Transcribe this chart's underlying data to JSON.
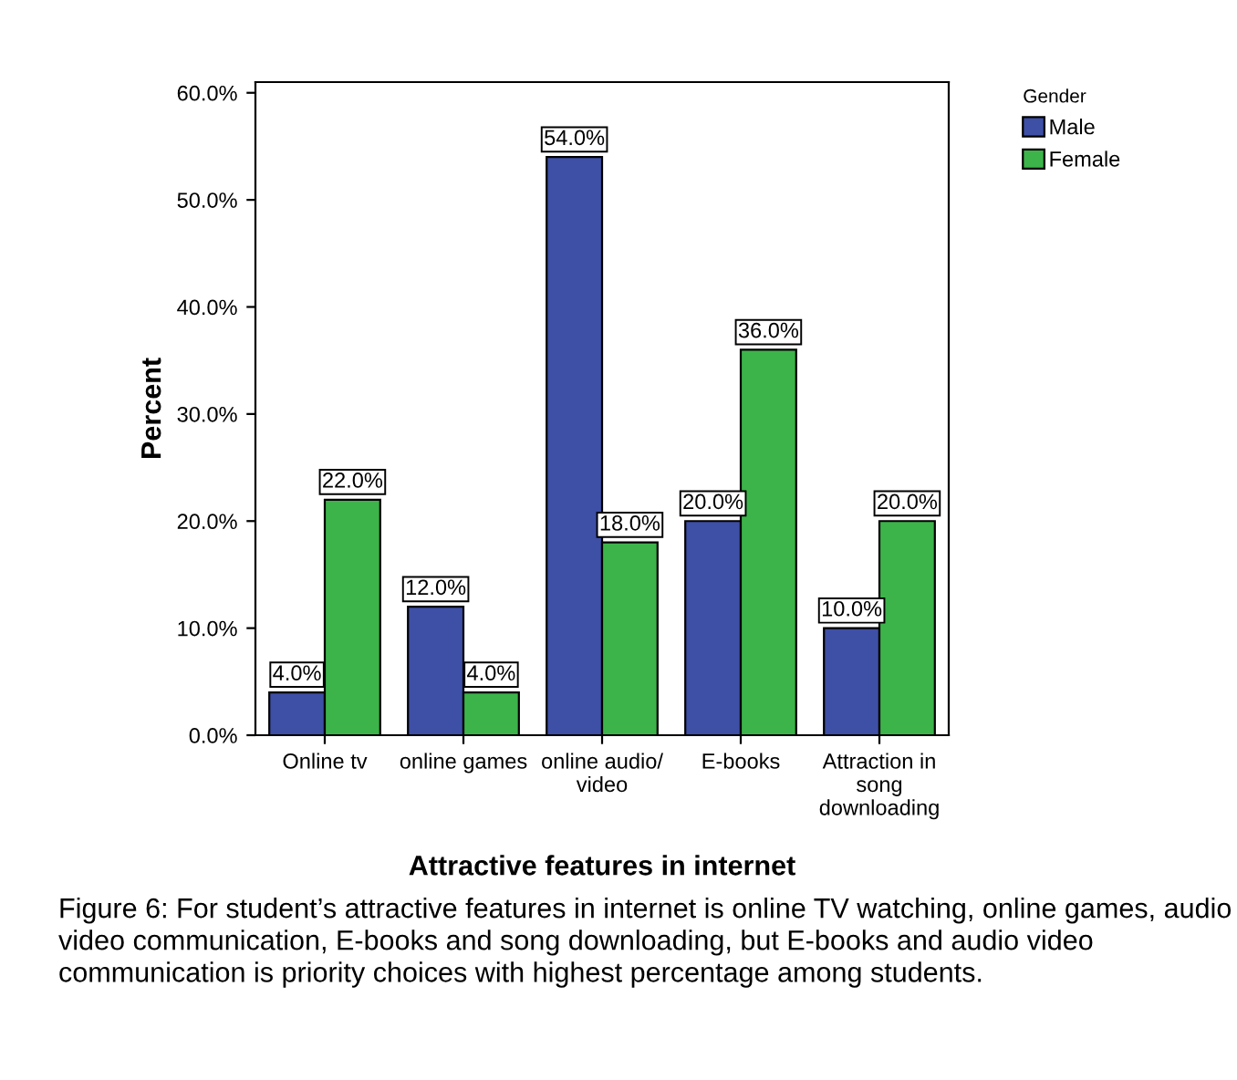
{
  "chart_data": {
    "type": "bar",
    "xlabel": "Attractive features in internet",
    "ylabel": "Percent",
    "legend_title": "Gender",
    "categories": [
      "Online tv",
      "online games",
      "online audio/\nvideo",
      "E-books",
      "Attraction in\nsong\ndownloading"
    ],
    "series": [
      {
        "name": "Male",
        "color": "#3e4fa6",
        "values": [
          4,
          12,
          54,
          20,
          10
        ],
        "value_labels": [
          "4.0%",
          "12.0%",
          "54.0%",
          "20.0%",
          "10.0%"
        ]
      },
      {
        "name": "Female",
        "color": "#3cb44a",
        "values": [
          22,
          4,
          18,
          36,
          20
        ],
        "value_labels": [
          "22.0%",
          "4.0%",
          "18.0%",
          "36.0%",
          "20.0%"
        ]
      }
    ],
    "ylim": [
      0,
      61
    ],
    "yticks": [
      {
        "value": 0,
        "label": "0.0%"
      },
      {
        "value": 10,
        "label": "10.0%"
      },
      {
        "value": 20,
        "label": "20.0%"
      },
      {
        "value": 30,
        "label": "30.0%"
      },
      {
        "value": 40,
        "label": "40.0%"
      },
      {
        "value": 50,
        "label": "50.0%"
      },
      {
        "value": 60,
        "label": "60.0%"
      }
    ],
    "legend": "top right",
    "annotations": [
      "Figure 6: For student’s attractive features in internet is online TV watching, online games, audio video communication, E-books and song downloading, but E-books and audio video communication is priority choices with highest percentage among students."
    ]
  }
}
